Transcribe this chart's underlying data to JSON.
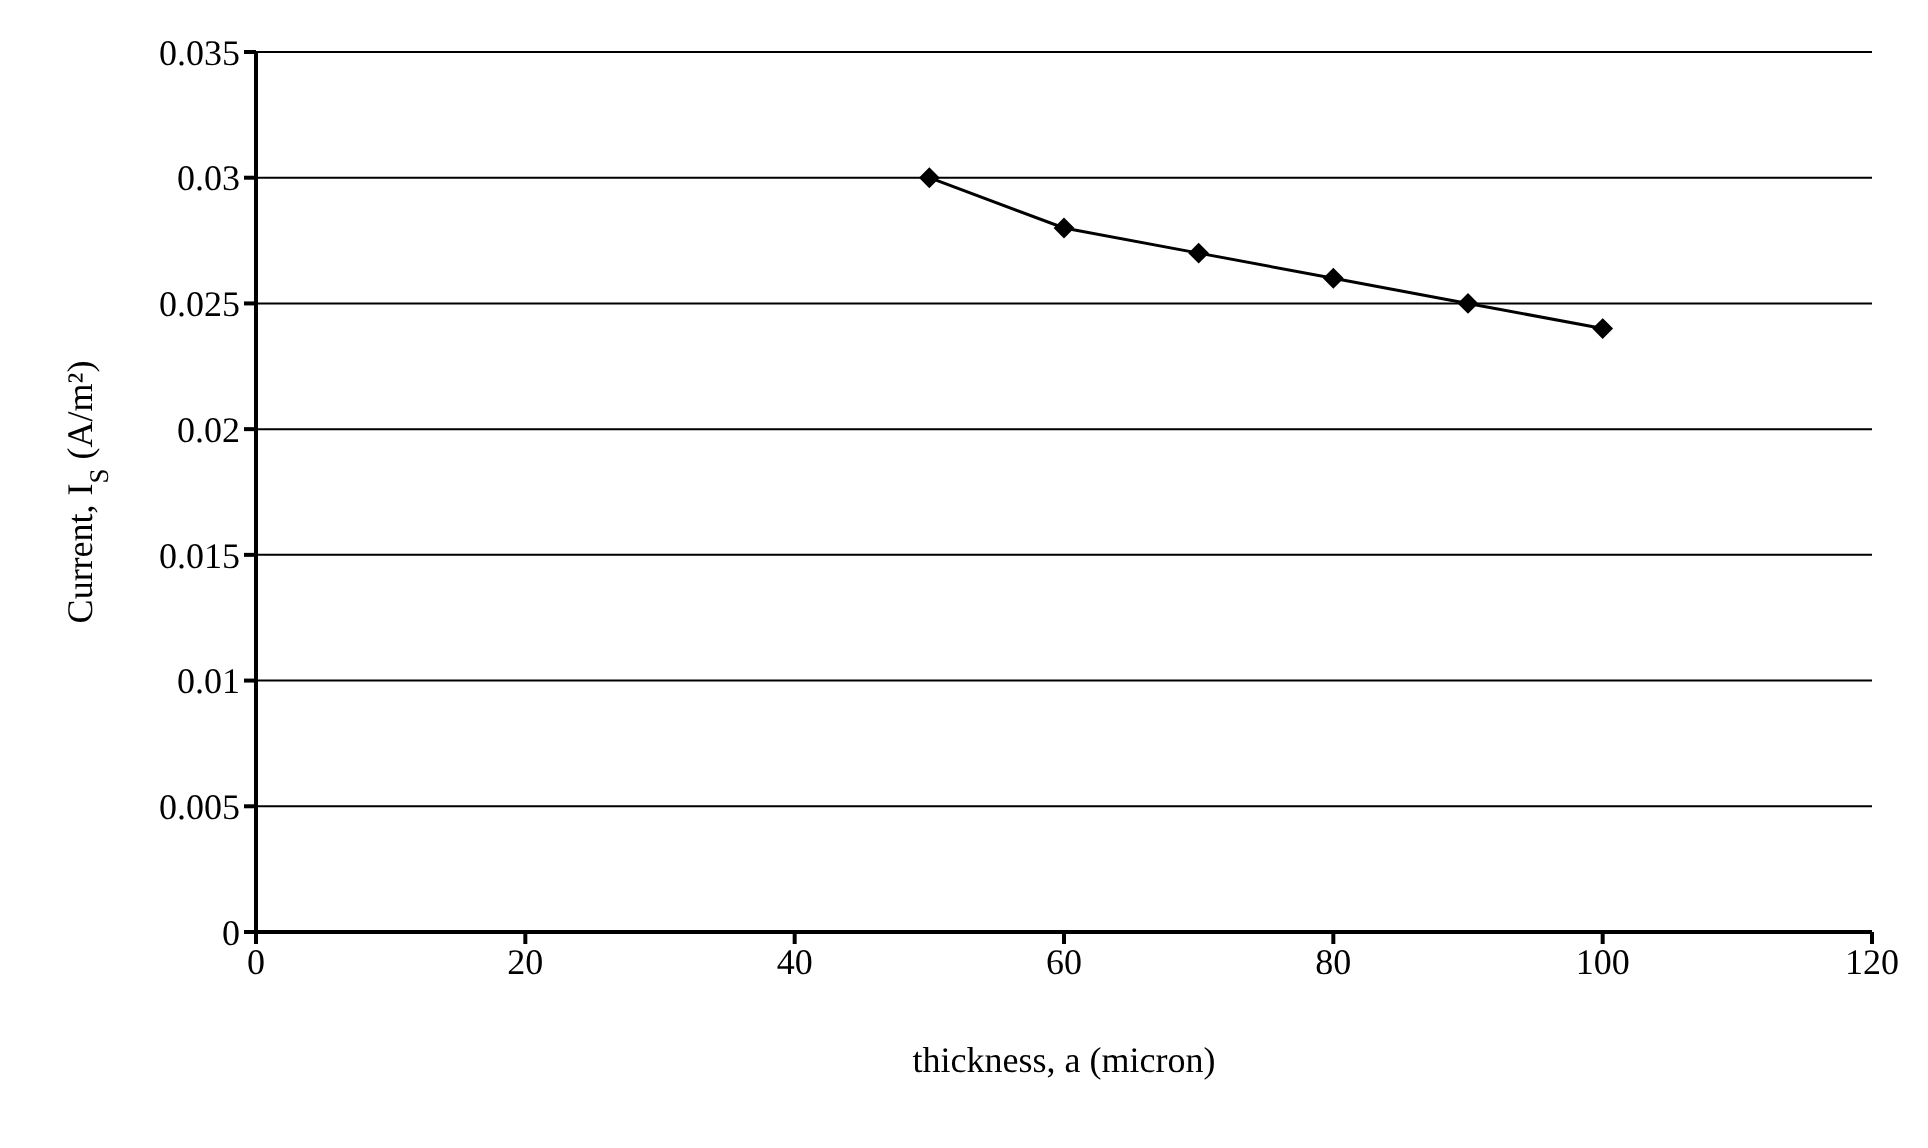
{
  "chart_data": {
    "type": "line",
    "xlabel": "thickness, a (micron)",
    "ylabel": "Current, I$_{S}$ (A/m²)",
    "x": [
      50,
      60,
      70,
      80,
      90,
      100
    ],
    "series": [
      {
        "color": "#000000",
        "values": [
          0.03,
          0.028,
          0.027,
          0.026,
          0.025,
          0.024
        ]
      }
    ],
    "xlim": [
      0,
      120
    ],
    "xticks": [
      0,
      20,
      40,
      60,
      80,
      100,
      120
    ],
    "ylim": [
      0,
      0.035
    ],
    "yticks": [
      0,
      0.005,
      0.01,
      0.015,
      0.02,
      0.025,
      0.03,
      0.035
    ],
    "grid": "y",
    "marker": "diamond",
    "line_style": "solid",
    "legend": false
  }
}
